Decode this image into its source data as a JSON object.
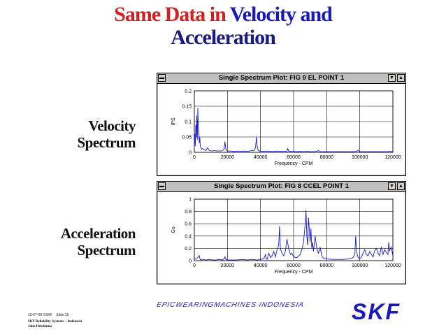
{
  "slide": {
    "title_part1": "Same Data in ",
    "title_part2": "Velocity and",
    "title_line2": "Acceleration",
    "velocity_label_line1": "Velocity",
    "velocity_label_line2": "Spectrum",
    "acceleration_label_line1": "Acceleration",
    "acceleration_label_line2": "Spectrum",
    "footer_date": "15-07-08",
    "footer_brand": "©SKF",
    "footer_slide": "Slide 25",
    "footer_org": "SKF Reliability Systems – Indonesia",
    "footer_author": "John Hendianto",
    "tagline": "EPICWEARINGMACHINES INDONESIA",
    "logo_text": "SKF"
  },
  "window_buttons": {
    "menu_icon": "▬",
    "scroll_down_icon": "▼",
    "scroll_up_icon": "▲"
  },
  "colors": {
    "title_red": "#d42020",
    "title_blue": "#1a1ab8",
    "trace": "#1a1acc",
    "window_gray": "#c0c0c0"
  },
  "chart_data": [
    {
      "type": "line",
      "window_title": "Single Spectrum Plot: FIG 9 EL   POINT 1",
      "xlabel": "Frequency - CPM",
      "ylabel": "IPS",
      "xlim": [
        0,
        120000
      ],
      "ylim": [
        0,
        0.2
      ],
      "xticks": [
        "0",
        "20000",
        "40000",
        "60000",
        "80000",
        "100000",
        "120000"
      ],
      "yticks": [
        "0",
        "0.05",
        "0.1",
        "0.15",
        "0.2"
      ],
      "grid": true,
      "series": [
        {
          "x": [
            0,
            300,
            600,
            900,
            1200,
            1500,
            1800,
            2100,
            2400,
            2700,
            3000,
            3300,
            3600,
            4000,
            4500,
            5000,
            6000,
            7000,
            8000,
            9000,
            10000,
            11000,
            12000,
            13000,
            14000,
            15000,
            16000,
            17000,
            18000,
            18500,
            19000,
            19500,
            20000,
            22000,
            24000,
            26000,
            28000,
            30000,
            32000,
            34000,
            36000,
            37000,
            37500,
            38000,
            38500,
            39000,
            40000,
            42000,
            44000,
            46000,
            48000,
            50000,
            52000,
            54000,
            56000,
            56500,
            57000,
            58000,
            60000,
            62000,
            64000,
            66000,
            68000,
            70000,
            72000,
            74000,
            75000,
            76000,
            78000,
            80000,
            84000,
            88000,
            92000,
            96000,
            98000,
            99000,
            100000,
            102000,
            106000,
            110000,
            114000,
            117000,
            118000,
            120000
          ],
          "y": [
            0.01,
            0.06,
            0.02,
            0.09,
            0.05,
            0.12,
            0.04,
            0.145,
            0.08,
            0.07,
            0.03,
            0.05,
            0.02,
            0.015,
            0.01,
            0.012,
            0.008,
            0.006,
            0.015,
            0.006,
            0.005,
            0.004,
            0.006,
            0.005,
            0.004,
            0.005,
            0.004,
            0.006,
            0.01,
            0.035,
            0.012,
            0.006,
            0.004,
            0.004,
            0.003,
            0.004,
            0.003,
            0.004,
            0.003,
            0.005,
            0.006,
            0.015,
            0.05,
            0.02,
            0.008,
            0.005,
            0.004,
            0.003,
            0.004,
            0.003,
            0.003,
            0.004,
            0.003,
            0.003,
            0.004,
            0.012,
            0.004,
            0.003,
            0.003,
            0.002,
            0.003,
            0.002,
            0.003,
            0.002,
            0.002,
            0.003,
            0.006,
            0.002,
            0.002,
            0.002,
            0.002,
            0.002,
            0.002,
            0.002,
            0.003,
            0.006,
            0.002,
            0.002,
            0.002,
            0.002,
            0.002,
            0.002,
            0.003,
            0.002
          ]
        }
      ]
    },
    {
      "type": "line",
      "window_title": "Single Spectrum Plot: FIG 8 CCEL   POINT 1",
      "xlabel": "Frequency - CPM",
      "ylabel": "Gs",
      "xlim": [
        0,
        120000
      ],
      "ylim": [
        0,
        1
      ],
      "xticks": [
        "0",
        "20000",
        "40000",
        "60000",
        "80000",
        "100000",
        "120000"
      ],
      "yticks": [
        "0",
        "0.2",
        "0.4",
        "0.6",
        "0.8",
        "1"
      ],
      "grid": true,
      "series": [
        {
          "x": [
            0,
            1000,
            2000,
            3000,
            3500,
            4000,
            5000,
            7000,
            9000,
            11000,
            13000,
            15000,
            17000,
            18000,
            18500,
            19000,
            20000,
            23000,
            26000,
            29000,
            32000,
            35000,
            38000,
            40000,
            42000,
            43000,
            43500,
            44000,
            45000,
            46000,
            47000,
            48000,
            49000,
            50000,
            51000,
            51500,
            52000,
            53000,
            54000,
            55000,
            56000,
            57000,
            58000,
            59000,
            60000,
            62000,
            64000,
            65000,
            66000,
            67000,
            67500,
            68000,
            68500,
            69000,
            70000,
            70500,
            71000,
            71500,
            72000,
            73000,
            74000,
            75000,
            76000,
            77000,
            78000,
            80000,
            83000,
            86000,
            90000,
            94000,
            96000,
            97000,
            97500,
            98000,
            99000,
            100000,
            101000,
            102000,
            103000,
            104000,
            105000,
            106000,
            107000,
            108000,
            109000,
            110000,
            111000,
            112000,
            113000,
            114000,
            115000,
            116000,
            117000,
            117500,
            118000,
            119000,
            120000
          ],
          "y": [
            0.02,
            0.03,
            0.05,
            0.08,
            0.02,
            0.01,
            0.02,
            0.01,
            0.02,
            0.01,
            0.01,
            0.02,
            0.01,
            0.03,
            0.06,
            0.02,
            0.01,
            0.01,
            0.01,
            0.02,
            0.01,
            0.02,
            0.01,
            0.02,
            0.03,
            0.1,
            0.03,
            0.02,
            0.12,
            0.05,
            0.08,
            0.15,
            0.06,
            0.18,
            0.25,
            0.56,
            0.2,
            0.12,
            0.08,
            0.15,
            0.35,
            0.2,
            0.1,
            0.12,
            0.06,
            0.05,
            0.1,
            0.18,
            0.3,
            0.6,
            0.82,
            0.4,
            0.25,
            0.7,
            0.3,
            0.52,
            0.2,
            0.3,
            0.15,
            0.4,
            0.2,
            0.12,
            0.22,
            0.08,
            0.04,
            0.03,
            0.02,
            0.02,
            0.02,
            0.03,
            0.05,
            0.1,
            0.4,
            0.15,
            0.05,
            0.03,
            0.06,
            0.12,
            0.18,
            0.1,
            0.08,
            0.15,
            0.1,
            0.06,
            0.16,
            0.2,
            0.12,
            0.08,
            0.22,
            0.1,
            0.18,
            0.14,
            0.1,
            0.3,
            0.16,
            0.22,
            0.08
          ]
        }
      ]
    }
  ]
}
